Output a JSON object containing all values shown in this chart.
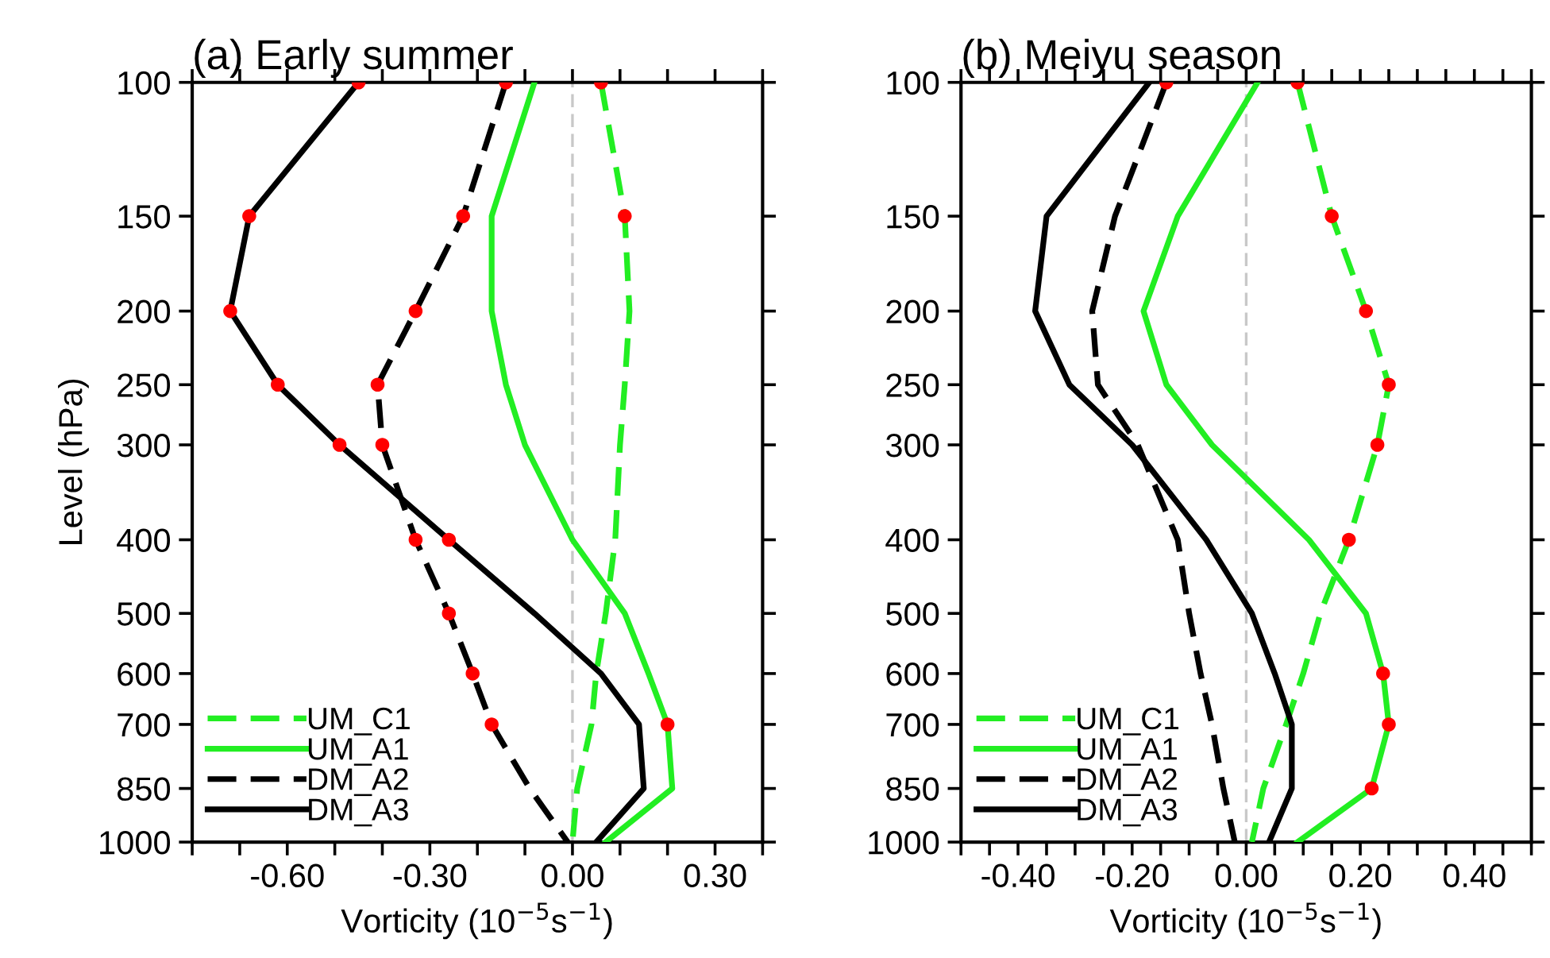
{
  "chart_data": [
    {
      "type": "line",
      "title": "(a) Early summer",
      "xlabel": "Vorticity (10$^{−5}$s$^{−1}$)",
      "ylabel": "Level (hPa)",
      "log": "y",
      "grid": false,
      "legend": "bottom left",
      "xlim": [
        -0.8,
        0.4
      ],
      "xticks": [
        {
          "value": -0.8,
          "label": null
        },
        {
          "value": -0.7,
          "label": null
        },
        {
          "value": -0.6,
          "label": "-0.60"
        },
        {
          "value": -0.5,
          "label": null
        },
        {
          "value": -0.4,
          "label": null
        },
        {
          "value": -0.3,
          "label": "-0.30"
        },
        {
          "value": -0.2,
          "label": null
        },
        {
          "value": -0.1,
          "label": null
        },
        {
          "value": 0,
          "label": "0.00"
        },
        {
          "value": 0.1,
          "label": null
        },
        {
          "value": 0.2,
          "label": null
        },
        {
          "value": 0.3,
          "label": "0.30"
        },
        {
          "value": 0.4,
          "label": null
        }
      ],
      "ylim": [
        1000,
        100
      ],
      "yticks": [
        100,
        150,
        200,
        250,
        300,
        400,
        500,
        600,
        700,
        850,
        1000
      ],
      "ref_lines": [
        {
          "axis": "x",
          "value": 0,
          "label": null,
          "color": "#c8c8c8",
          "line_style": "dashed"
        }
      ],
      "series": [
        {
          "name": "UM_C1",
          "type": "line",
          "color": "#22ee22",
          "line_style": "dashed",
          "x": [
            0.06,
            0.11,
            0.12,
            0.11,
            0.1,
            0.09,
            0.07,
            0.05,
            0.04,
            0.01,
            0.0
          ],
          "values": [
            100,
            150,
            200,
            250,
            300,
            400,
            500,
            600,
            700,
            850,
            1000
          ]
        },
        {
          "name": "UM_A1",
          "type": "line",
          "color": "#22ee22",
          "line_style": "solid",
          "x": [
            -0.08,
            -0.17,
            -0.17,
            -0.14,
            -0.1,
            0.0,
            0.11,
            0.16,
            0.2,
            0.21,
            0.07
          ],
          "values": [
            100,
            150,
            200,
            250,
            300,
            400,
            500,
            600,
            700,
            850,
            1000
          ]
        },
        {
          "name": "DM_A2",
          "type": "line",
          "color": "#000000",
          "line_style": "dashed",
          "x": [
            -0.14,
            -0.23,
            -0.33,
            -0.41,
            -0.4,
            -0.33,
            -0.26,
            -0.21,
            -0.17,
            -0.09,
            -0.01
          ],
          "values": [
            100,
            150,
            200,
            250,
            300,
            400,
            500,
            600,
            700,
            850,
            1000
          ]
        },
        {
          "name": "DM_A3",
          "type": "line",
          "color": "#000000",
          "line_style": "solid",
          "x": [
            -0.45,
            -0.68,
            -0.72,
            -0.62,
            -0.49,
            -0.26,
            -0.08,
            0.06,
            0.14,
            0.15,
            0.05
          ],
          "values": [
            100,
            150,
            200,
            250,
            300,
            400,
            500,
            600,
            700,
            850,
            1000
          ]
        },
        {
          "type": "scatter",
          "color": "#ff0000",
          "marker": "circle",
          "x": [
            -0.45,
            -0.68,
            -0.72,
            -0.62,
            -0.49,
            -0.26,
            -0.14,
            -0.23,
            -0.33,
            -0.41,
            -0.4,
            -0.33,
            -0.26,
            -0.21,
            -0.17,
            0.06,
            0.11,
            0.2
          ],
          "values": [
            100,
            150,
            200,
            250,
            300,
            400,
            100,
            150,
            200,
            250,
            300,
            400,
            500,
            600,
            700,
            100,
            150,
            700
          ]
        }
      ]
    },
    {
      "type": "line",
      "title": "(b) Meiyu season",
      "xlabel": "Vorticity (10$^{−5}$s$^{−1}$)",
      "log": "y",
      "grid": false,
      "legend": "bottom left",
      "xlim": [
        -0.5,
        0.5
      ],
      "xticks": [
        {
          "value": -0.5,
          "label": null
        },
        {
          "value": -0.45,
          "label": null
        },
        {
          "value": -0.4,
          "label": "-0.40"
        },
        {
          "value": -0.35,
          "label": null
        },
        {
          "value": -0.3,
          "label": null
        },
        {
          "value": -0.25,
          "label": null
        },
        {
          "value": -0.2,
          "label": "-0.20"
        },
        {
          "value": -0.15,
          "label": null
        },
        {
          "value": -0.1,
          "label": null
        },
        {
          "value": -0.05,
          "label": null
        },
        {
          "value": 0,
          "label": "0.00"
        },
        {
          "value": 0.05,
          "label": null
        },
        {
          "value": 0.1,
          "label": null
        },
        {
          "value": 0.15,
          "label": null
        },
        {
          "value": 0.2,
          "label": "0.20"
        },
        {
          "value": 0.25,
          "label": null
        },
        {
          "value": 0.3,
          "label": null
        },
        {
          "value": 0.35,
          "label": null
        },
        {
          "value": 0.4,
          "label": "0.40"
        },
        {
          "value": 0.45,
          "label": null
        },
        {
          "value": 0.5,
          "label": null
        }
      ],
      "ylim": [
        1000,
        100
      ],
      "yticks": [
        100,
        150,
        200,
        250,
        300,
        400,
        500,
        600,
        700,
        850,
        1000
      ],
      "ref_lines": [
        {
          "axis": "x",
          "value": 0,
          "label": null,
          "color": "#c8c8c8",
          "line_style": "dashed"
        }
      ],
      "series": [
        {
          "name": "UM_C1",
          "type": "line",
          "color": "#22ee22",
          "line_style": "dashed",
          "x": [
            0.09,
            0.15,
            0.21,
            0.25,
            0.23,
            0.18,
            0.13,
            0.1,
            0.07,
            0.03,
            0.01
          ],
          "values": [
            100,
            150,
            200,
            250,
            300,
            400,
            500,
            600,
            700,
            850,
            1000
          ]
        },
        {
          "name": "UM_A1",
          "type": "line",
          "color": "#22ee22",
          "line_style": "solid",
          "x": [
            0.02,
            -0.12,
            -0.18,
            -0.14,
            -0.06,
            0.11,
            0.21,
            0.24,
            0.25,
            0.22,
            0.09
          ],
          "values": [
            100,
            150,
            200,
            250,
            300,
            400,
            500,
            600,
            700,
            850,
            1000
          ]
        },
        {
          "name": "DM_A2",
          "type": "line",
          "color": "#000000",
          "line_style": "dashed",
          "x": [
            -0.14,
            -0.23,
            -0.27,
            -0.26,
            -0.19,
            -0.12,
            -0.1,
            -0.08,
            -0.06,
            -0.04,
            -0.02
          ],
          "values": [
            100,
            150,
            200,
            250,
            300,
            400,
            500,
            600,
            700,
            850,
            1000
          ]
        },
        {
          "name": "DM_A3",
          "type": "line",
          "color": "#000000",
          "line_style": "solid",
          "x": [
            -0.17,
            -0.35,
            -0.37,
            -0.31,
            -0.2,
            -0.07,
            0.01,
            0.05,
            0.08,
            0.08,
            0.04
          ],
          "values": [
            100,
            150,
            200,
            250,
            300,
            400,
            500,
            600,
            700,
            850,
            1000
          ]
        },
        {
          "type": "scatter",
          "color": "#ff0000",
          "marker": "circle",
          "x": [
            0.09,
            0.15,
            0.21,
            0.25,
            0.23,
            0.18,
            0.24,
            0.25,
            0.22,
            -0.14
          ],
          "values": [
            100,
            150,
            200,
            250,
            300,
            400,
            600,
            700,
            850,
            100
          ]
        }
      ]
    }
  ]
}
